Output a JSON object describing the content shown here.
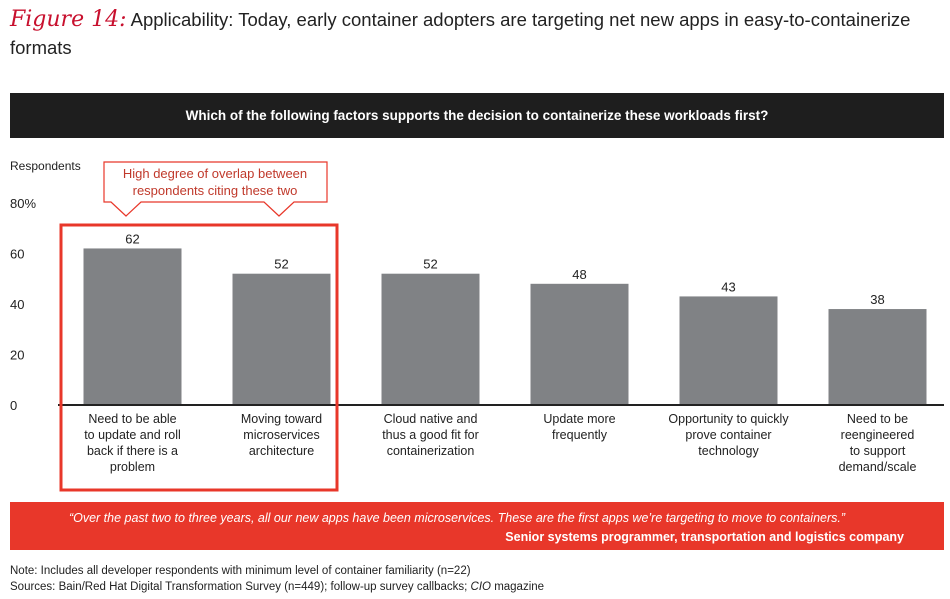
{
  "figure": {
    "label": "Figure 14:",
    "title": "Applicability: Today, early container adopters are targeting net new apps in easy-to-containerize formats"
  },
  "banner": "Which of the following factors supports the decision to containerize these workloads first?",
  "callout": "High degree of overlap between respondents citing these two",
  "colors": {
    "bar": "#808285",
    "accent": "#e8372a",
    "callout_text": "#c0392b",
    "banner_bg": "#1e1e1e"
  },
  "chart_data": {
    "type": "bar",
    "ylabel": "Respondents",
    "ylim": [
      0,
      80
    ],
    "yticks": [
      {
        "value": 0,
        "label": "0"
      },
      {
        "value": 20,
        "label": "20"
      },
      {
        "value": 40,
        "label": "40"
      },
      {
        "value": 60,
        "label": "60"
      },
      {
        "value": 80,
        "label": "80%"
      }
    ],
    "categories": [
      "Need to be able to update and roll back if there is a problem",
      "Moving toward microservices architecture",
      "Cloud native and thus a good fit for containerization",
      "Update more frequently",
      "Opportunity to quickly prove container technology",
      "Need to be reengineered to support demand/scale"
    ],
    "category_lines": [
      [
        "Need to be able",
        "to update and roll",
        "back if there is a",
        "problem"
      ],
      [
        "Moving toward",
        "microservices",
        "architecture"
      ],
      [
        "Cloud native and",
        "thus a good fit for",
        "containerization"
      ],
      [
        "Update more",
        "frequently"
      ],
      [
        "Opportunity to quickly",
        "prove container",
        "technology"
      ],
      [
        "Need to be",
        "reengineered",
        "to support",
        "demand/scale"
      ]
    ],
    "values": [
      62,
      52,
      52,
      48,
      43,
      38
    ],
    "highlighted": [
      0,
      1
    ],
    "grid": false
  },
  "quote": {
    "text": "“Over the past two to three years, all our new apps have been microservices. These are the first apps we’re targeting to move to containers.”",
    "attribution": "Senior systems programmer, transportation and logistics company"
  },
  "notes": {
    "note": "Note: Includes all developer respondents with minimum level of container familiarity (n=22)",
    "sources": "Sources: Bain/Red Hat Digital Transformation Survey (n=449); follow-up survey callbacks;",
    "sources_magazine": "CIO",
    "sources_end": "magazine"
  }
}
